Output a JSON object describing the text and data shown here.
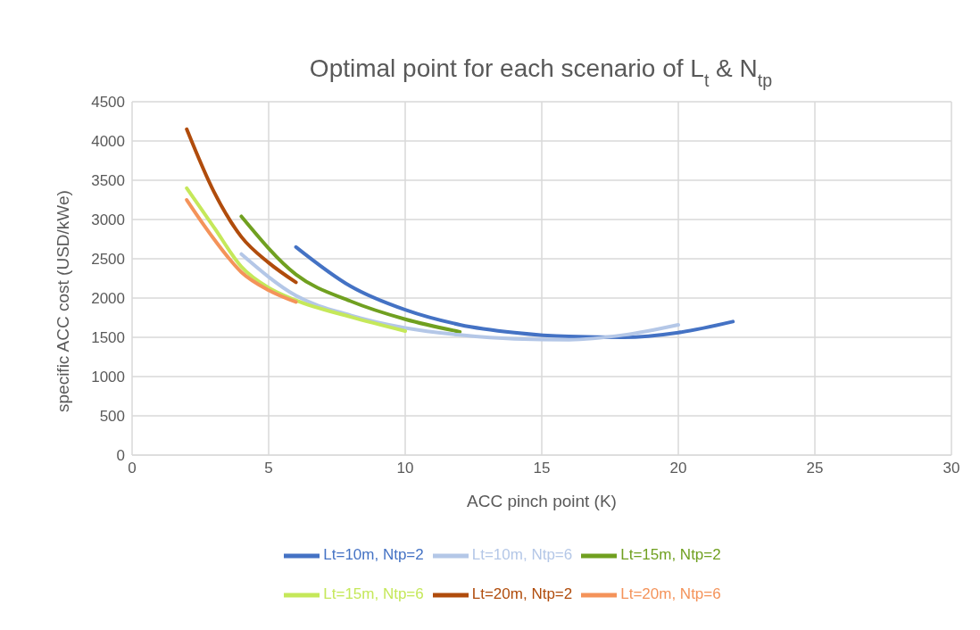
{
  "chart_data": {
    "type": "line",
    "title": "Optimal point for each scenario of L$_{t}$ & N$_{tp}$",
    "xlabel": "ACC pinch point (K)",
    "ylabel": "specific ACC cost (USD/kWe)",
    "xlim": [
      0,
      30
    ],
    "xticks": [
      0,
      5,
      10,
      15,
      20,
      25,
      30
    ],
    "ylim": [
      0,
      4500
    ],
    "yticks": [
      0,
      500,
      1000,
      1500,
      2000,
      2500,
      3000,
      3500,
      4000,
      4500
    ],
    "grid": true,
    "legend": "bottom",
    "marker": "none",
    "line_style": "solid",
    "series": [
      {
        "name": "Lt=10m, Ntp=2",
        "color": "#4472c4",
        "x": [
          6,
          8,
          10,
          12,
          14,
          16,
          18,
          20,
          22
        ],
        "values": [
          2650,
          2150,
          1850,
          1660,
          1560,
          1510,
          1500,
          1560,
          1700
        ]
      },
      {
        "name": "Lt=15m, Ntp=2",
        "color": "#70a020",
        "x": [
          4,
          6,
          8,
          10,
          12
        ],
        "values": [
          3040,
          2300,
          1960,
          1730,
          1570
        ]
      },
      {
        "name": "Lt=20m, Ntp=2",
        "color": "#b04c0c",
        "x": [
          2,
          3,
          4,
          5,
          6
        ],
        "values": [
          4150,
          3350,
          2780,
          2450,
          2200
        ]
      },
      {
        "name": "Lt=10m, Ntp=6",
        "color": "#b4c7e7",
        "x": [
          4,
          6,
          8,
          10,
          12,
          14,
          16,
          18,
          20
        ],
        "values": [
          2560,
          2030,
          1780,
          1620,
          1530,
          1480,
          1470,
          1530,
          1660
        ]
      },
      {
        "name": "Lt=15m, Ntp=6",
        "color": "#c5e85a",
        "x": [
          2,
          3,
          4,
          5,
          6,
          8,
          10
        ],
        "values": [
          3400,
          2900,
          2400,
          2130,
          1970,
          1760,
          1580
        ]
      },
      {
        "name": "Lt=20m, Ntp=6",
        "color": "#f4935a",
        "x": [
          2,
          3,
          4,
          5,
          6
        ],
        "values": [
          3250,
          2750,
          2330,
          2100,
          1950
        ]
      }
    ]
  }
}
